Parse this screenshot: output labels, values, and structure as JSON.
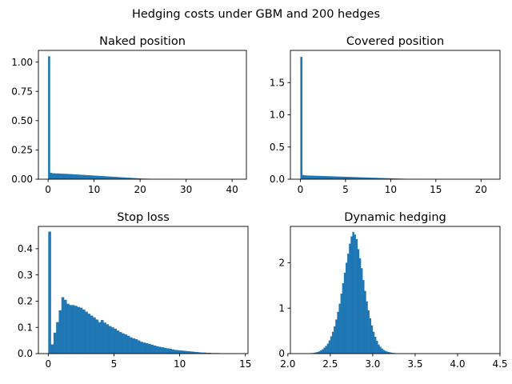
{
  "figure": {
    "suptitle": "Hedging costs under GBM and 200 hedges",
    "bar_color": "#1f77b4"
  },
  "chart_data": [
    {
      "type": "bar",
      "title": "Naked position",
      "xlabel": "",
      "ylabel": "",
      "xlim": [
        -2.1,
        43.1
      ],
      "ylim": [
        0,
        1.1
      ],
      "xticks": [
        0,
        10,
        20,
        30,
        40
      ],
      "xtick_labels": [
        "0",
        "10",
        "20",
        "30",
        "40"
      ],
      "yticks": [
        0.0,
        0.25,
        0.5,
        0.75,
        1.0
      ],
      "ytick_labels": [
        "0.00",
        "0.25",
        "0.50",
        "0.75",
        "1.00"
      ],
      "bin_width": 0.41,
      "bin_start": 0,
      "values": [
        1.05,
        0.055,
        0.051,
        0.05,
        0.049,
        0.049,
        0.048,
        0.047,
        0.046,
        0.046,
        0.045,
        0.044,
        0.043,
        0.042,
        0.041,
        0.04,
        0.039,
        0.038,
        0.037,
        0.036,
        0.035,
        0.034,
        0.033,
        0.032,
        0.031,
        0.03,
        0.029,
        0.028,
        0.027,
        0.026,
        0.025,
        0.024,
        0.023,
        0.022,
        0.021,
        0.02,
        0.019,
        0.018,
        0.017,
        0.016,
        0.015,
        0.014,
        0.013,
        0.012,
        0.011,
        0.01,
        0.009,
        0.008,
        0.007,
        0.006,
        0.005,
        0.005,
        0.004,
        0.004,
        0.003,
        0.003,
        0.002,
        0.002,
        0.002,
        0.001,
        0.001,
        0.001,
        0.001,
        0.001,
        0.001,
        0.0005,
        0.0005,
        0.0005,
        0.0005,
        0.0005
      ]
    },
    {
      "type": "bar",
      "title": "Covered position",
      "xlabel": "",
      "ylabel": "",
      "xlim": [
        -1.1,
        22.1
      ],
      "ylim": [
        0,
        2.0
      ],
      "xticks": [
        0,
        5,
        10,
        15,
        20
      ],
      "xtick_labels": [
        "0",
        "5",
        "10",
        "15",
        "20"
      ],
      "yticks": [
        0.0,
        0.5,
        1.0,
        1.5
      ],
      "ytick_labels": [
        "0.0",
        "0.5",
        "1.0",
        "1.5"
      ],
      "bin_width": 0.21,
      "bin_start": 0,
      "values": [
        1.9,
        0.065,
        0.06,
        0.058,
        0.057,
        0.056,
        0.055,
        0.054,
        0.053,
        0.052,
        0.051,
        0.05,
        0.049,
        0.048,
        0.047,
        0.046,
        0.045,
        0.044,
        0.043,
        0.042,
        0.041,
        0.04,
        0.039,
        0.038,
        0.037,
        0.036,
        0.035,
        0.034,
        0.033,
        0.032,
        0.031,
        0.03,
        0.029,
        0.028,
        0.027,
        0.026,
        0.025,
        0.024,
        0.023,
        0.022,
        0.021,
        0.02,
        0.019,
        0.018,
        0.017,
        0.016,
        0.015,
        0.014,
        0.013,
        0.012,
        0.011,
        0.01,
        0.009,
        0.008,
        0.007,
        0.006,
        0.005,
        0.004,
        0.003,
        0.002,
        0.002,
        0.001,
        0.001,
        0.001,
        0.001,
        0.001,
        0.001,
        0.001,
        0.001,
        0.001,
        0.001,
        0.001
      ]
    },
    {
      "type": "bar",
      "title": "Stop loss",
      "xlabel": "",
      "ylabel": "",
      "xlim": [
        -0.75,
        15.2
      ],
      "ylim": [
        0,
        0.485
      ],
      "xticks": [
        0,
        5,
        10,
        15
      ],
      "xtick_labels": [
        "0",
        "5",
        "10",
        "15"
      ],
      "yticks": [
        0.0,
        0.1,
        0.2,
        0.3,
        0.4
      ],
      "ytick_labels": [
        "0.0",
        "0.1",
        "0.2",
        "0.3",
        "0.4"
      ],
      "bin_width": 0.2,
      "bin_start": 0,
      "values": [
        0.465,
        0.035,
        0.08,
        0.12,
        0.165,
        0.215,
        0.205,
        0.19,
        0.185,
        0.185,
        0.182,
        0.178,
        0.175,
        0.168,
        0.16,
        0.152,
        0.145,
        0.138,
        0.13,
        0.12,
        0.128,
        0.118,
        0.112,
        0.105,
        0.1,
        0.095,
        0.088,
        0.082,
        0.077,
        0.073,
        0.068,
        0.062,
        0.058,
        0.055,
        0.05,
        0.045,
        0.042,
        0.04,
        0.037,
        0.034,
        0.031,
        0.028,
        0.026,
        0.024,
        0.022,
        0.02,
        0.018,
        0.016,
        0.014,
        0.013,
        0.012,
        0.011,
        0.01,
        0.009,
        0.008,
        0.007,
        0.006,
        0.005,
        0.004,
        0.004,
        0.003,
        0.003,
        0.002,
        0.002,
        0.002,
        0.001,
        0.001,
        0.001,
        0.001,
        0.001,
        0.001,
        0.001,
        0.001,
        0,
        0,
        0,
        0,
        0,
        0,
        0,
        0,
        0,
        0,
        0,
        0,
        0,
        0,
        0,
        0,
        0,
        0,
        0,
        0,
        0,
        0,
        0,
        0,
        0,
        0,
        0
      ]
    },
    {
      "type": "bar",
      "title": "Dynamic hedging",
      "xlabel": "",
      "ylabel": "",
      "xlim": [
        2.03,
        4.5
      ],
      "ylim": [
        0,
        2.8
      ],
      "xticks": [
        2.0,
        2.5,
        3.0,
        3.5,
        4.0,
        4.5
      ],
      "xtick_labels": [
        "2.0",
        "2.5",
        "3.0",
        "3.5",
        "4.0",
        "4.5"
      ],
      "yticks": [
        0,
        1,
        2
      ],
      "ytick_labels": [
        "0",
        "1",
        "2"
      ],
      "bin_width": 0.02,
      "bin_start": 2.2,
      "values": [
        0.002,
        0.004,
        0.006,
        0.008,
        0.012,
        0.018,
        0.026,
        0.035,
        0.05,
        0.07,
        0.095,
        0.13,
        0.17,
        0.22,
        0.29,
        0.38,
        0.48,
        0.6,
        0.75,
        0.92,
        1.1,
        1.32,
        1.55,
        1.78,
        2.0,
        2.2,
        2.42,
        2.58,
        2.68,
        2.62,
        2.52,
        2.3,
        2.1,
        1.88,
        1.62,
        1.38,
        1.15,
        0.95,
        0.78,
        0.62,
        0.48,
        0.37,
        0.28,
        0.2,
        0.15,
        0.11,
        0.08,
        0.06,
        0.045,
        0.034,
        0.025,
        0.018,
        0.013,
        0.01,
        0.007,
        0.005,
        0.004,
        0.003,
        0.002,
        0.002,
        0.001,
        0.001,
        0.001,
        0.001,
        0.001,
        0.001,
        0.001,
        0.001,
        0.001,
        0.001,
        0.001,
        0.001,
        0.001,
        0.001,
        0.001,
        0.001,
        0.001,
        0.001,
        0.001,
        0.001,
        0.001
      ]
    }
  ]
}
